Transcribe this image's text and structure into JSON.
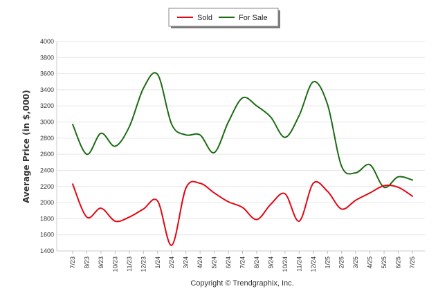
{
  "chart_data": {
    "type": "line",
    "categories": [
      "7/23",
      "8/23",
      "9/23",
      "10/23",
      "11/23",
      "12/23",
      "1/24",
      "2/24",
      "3/24",
      "4/24",
      "5/24",
      "6/24",
      "7/24",
      "8/24",
      "9/24",
      "10/24",
      "11/24",
      "12/24",
      "1/25",
      "2/25",
      "3/25",
      "4/25",
      "5/25",
      "6/25",
      "7/25"
    ],
    "series": [
      {
        "name": "Sold",
        "color": "#e30613",
        "values": [
          2230,
          1820,
          1930,
          1770,
          1820,
          1920,
          2020,
          1470,
          2180,
          2240,
          2120,
          2010,
          1940,
          1790,
          1980,
          2110,
          1770,
          2240,
          2140,
          1920,
          2030,
          2120,
          2210,
          2190,
          2080
        ]
      },
      {
        "name": "For Sale",
        "color": "#1a6b12",
        "values": [
          2970,
          2600,
          2860,
          2700,
          2940,
          3420,
          3590,
          2970,
          2840,
          2840,
          2620,
          3000,
          3300,
          3200,
          3060,
          2810,
          3080,
          3500,
          3220,
          2450,
          2370,
          2470,
          2190,
          2320,
          2280
        ]
      }
    ],
    "ylabel": "Average Price (in $,000)",
    "ylim": [
      1400,
      4000
    ],
    "yticks": [
      "1400",
      "1600",
      "1800",
      "2000",
      "2200",
      "2400",
      "2600",
      "2800",
      "3000",
      "3200",
      "3400",
      "3600",
      "3800",
      "4000"
    ],
    "grid": true,
    "legend_position": "top-center"
  },
  "footer": {
    "copyright": "Copyright © Trendgraphix, Inc."
  }
}
